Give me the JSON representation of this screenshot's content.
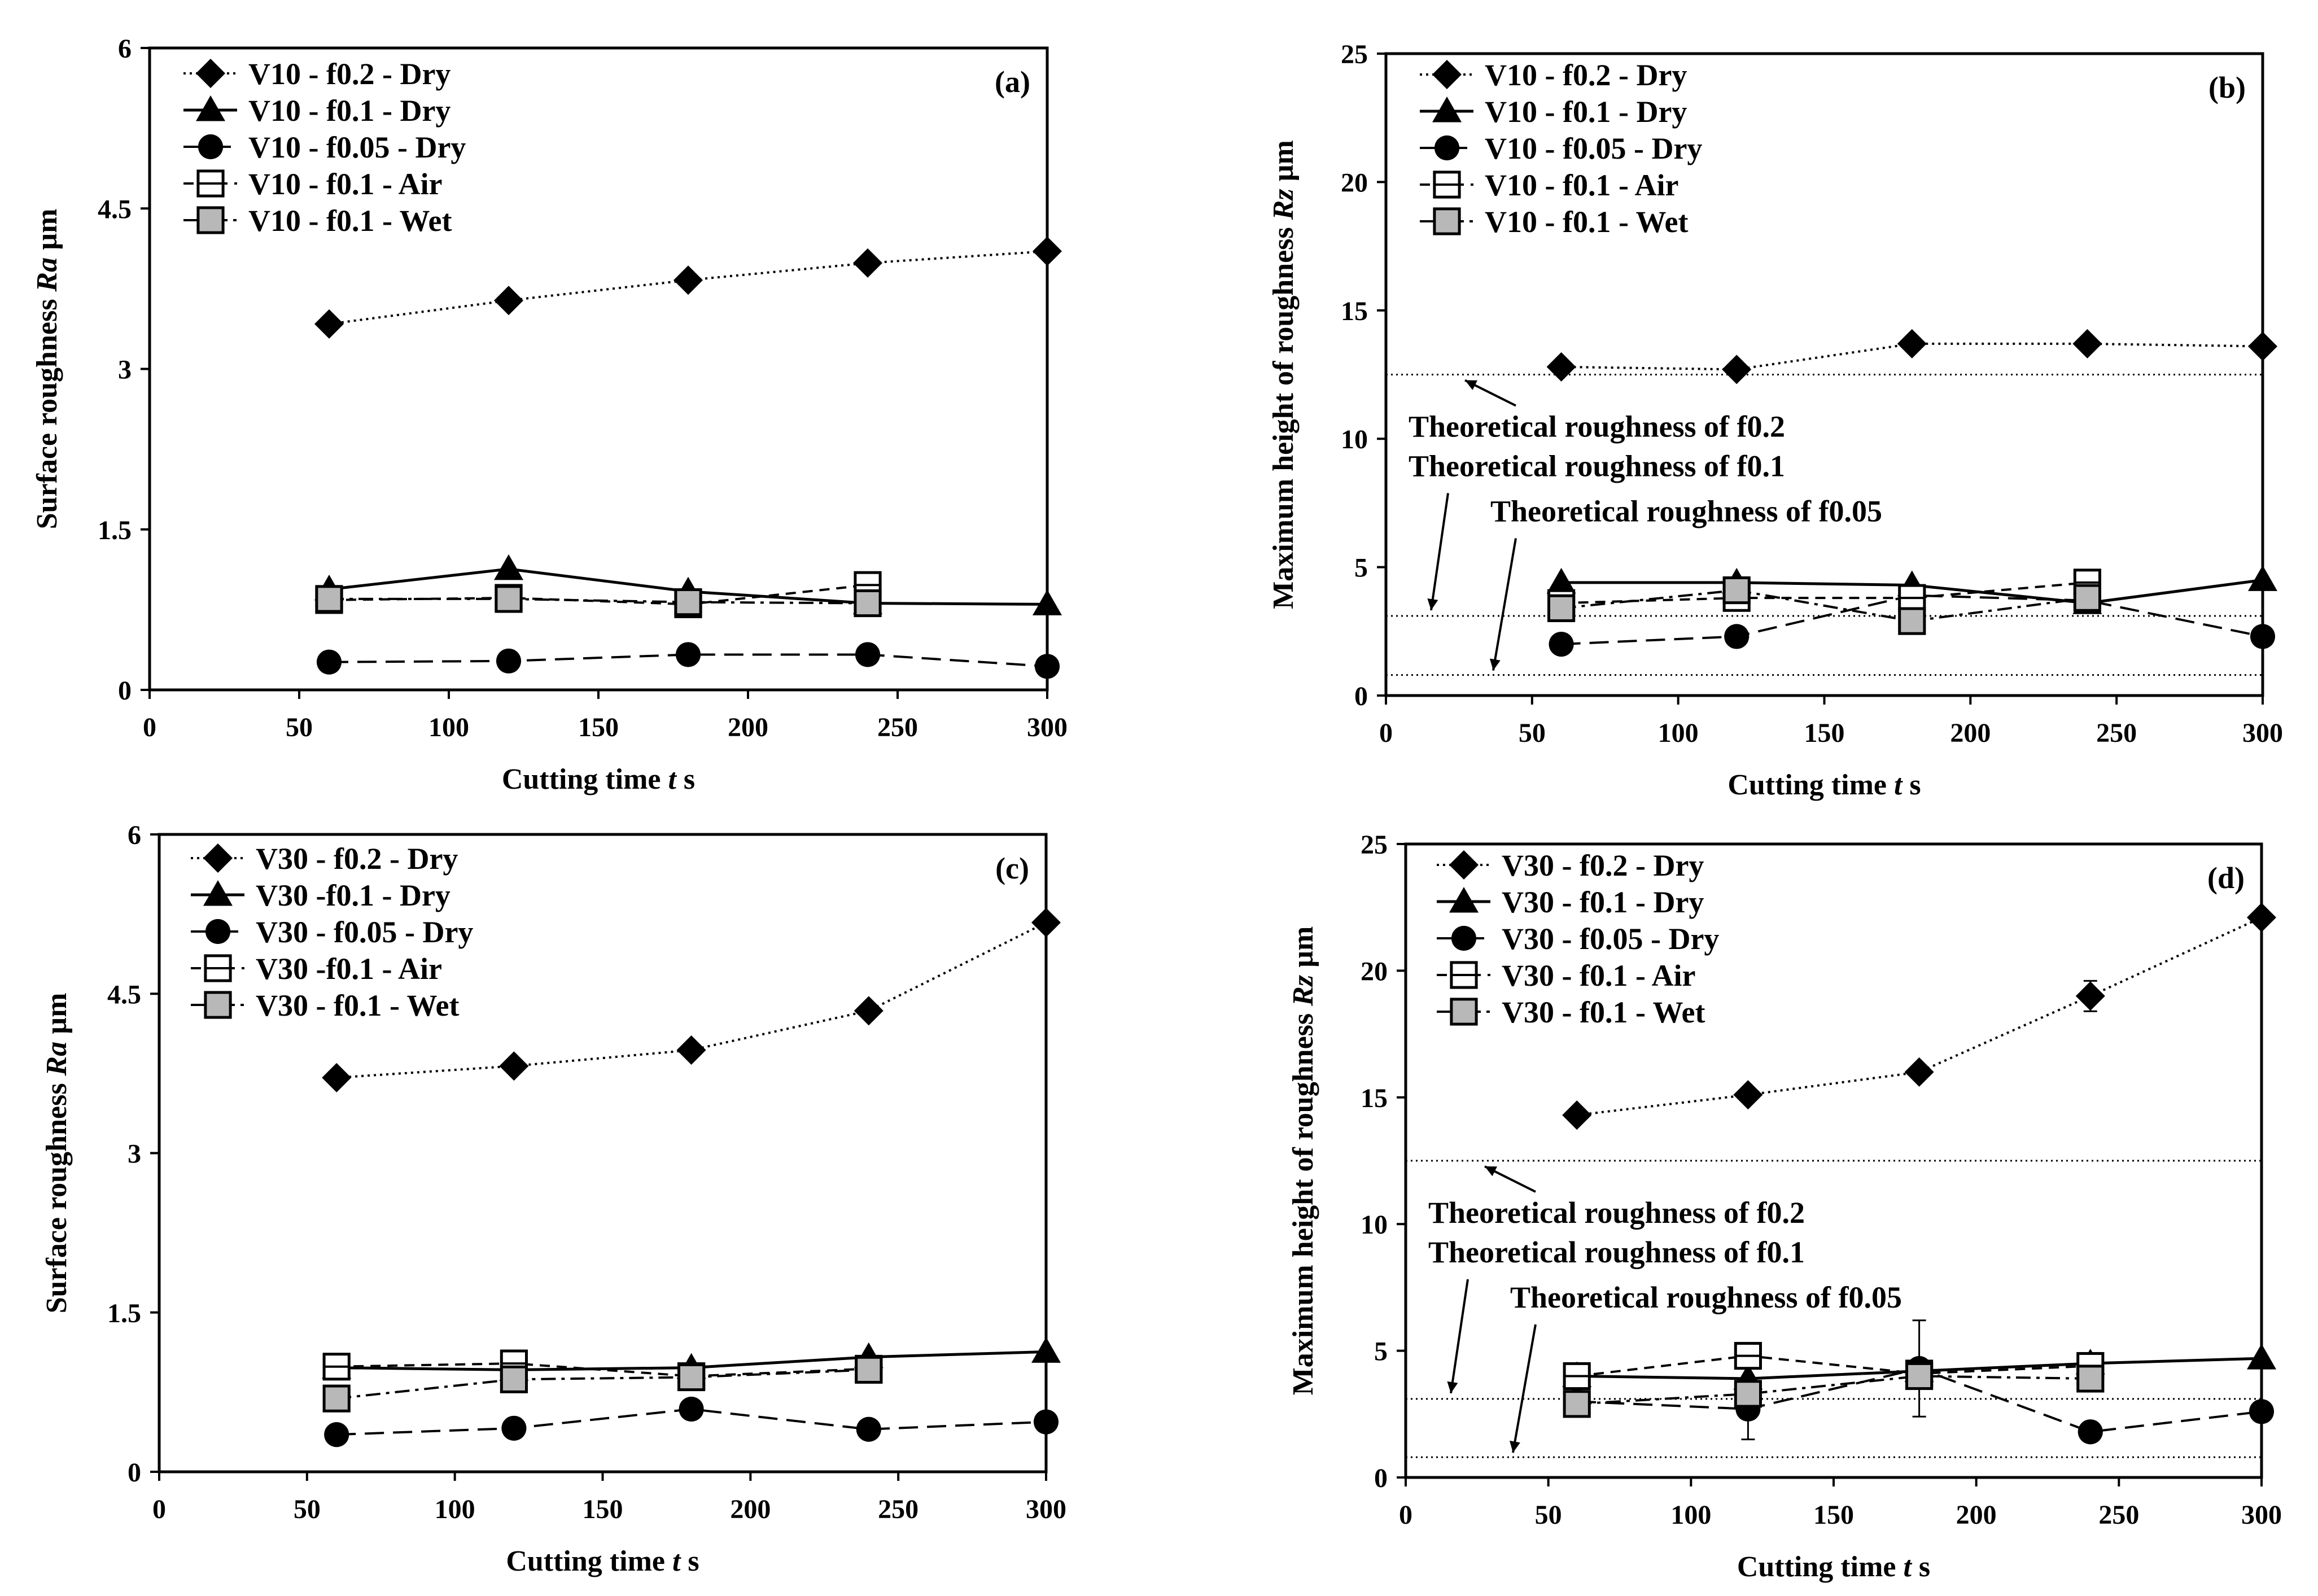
{
  "chart_data": [
    {
      "type": "line",
      "panel_label": "(a)",
      "xlabel": "Cutting time",
      "xlabel_var": "t",
      "xlabel_unit": "s",
      "ylabel": "Surface roughness",
      "ylabel_var": "Ra",
      "ylabel_unit": "µm",
      "xlim": [
        0,
        300
      ],
      "ylim": [
        0,
        6
      ],
      "xticks": [
        0,
        50,
        100,
        150,
        200,
        250,
        300
      ],
      "yticks": [
        0,
        1.5,
        3,
        4.5,
        6
      ],
      "x": [
        60,
        120,
        180,
        240,
        300
      ],
      "series": [
        {
          "name": "V10 - f0.2 - Dry",
          "marker": "diamond",
          "line": "dotted",
          "values": [
            3.42,
            3.64,
            3.83,
            3.99,
            4.1
          ]
        },
        {
          "name": "V10 - f0.1 - Dry",
          "marker": "triangle",
          "line": "solid",
          "values": [
            0.94,
            1.13,
            0.92,
            0.81,
            0.8
          ]
        },
        {
          "name": "V10 - f0.05 - Dry",
          "marker": "circle",
          "line": "longdash",
          "values": [
            0.26,
            0.27,
            0.33,
            0.33,
            0.22
          ]
        },
        {
          "name": "V10 - f0.1 - Air",
          "marker": "square-open",
          "line": "dash",
          "values": [
            0.84,
            0.86,
            0.8,
            0.98,
            null
          ]
        },
        {
          "name": "V10 - f0.1 - Wet",
          "marker": "square-grey",
          "line": "dashdot",
          "values": [
            0.85,
            0.85,
            0.82,
            0.81,
            null
          ]
        }
      ],
      "reference_lines": []
    },
    {
      "type": "line",
      "panel_label": "(b)",
      "xlabel": "Cutting time",
      "xlabel_var": "t",
      "xlabel_unit": "s",
      "ylabel": "Maximum height of roughness",
      "ylabel_var": "Rz",
      "ylabel_unit": "µm",
      "xlim": [
        0,
        300
      ],
      "ylim": [
        0,
        25
      ],
      "xticks": [
        0,
        50,
        100,
        150,
        200,
        250,
        300
      ],
      "yticks": [
        0,
        5,
        10,
        15,
        20,
        25
      ],
      "x": [
        60,
        120,
        180,
        240,
        300
      ],
      "series": [
        {
          "name": "V10 - f0.2 - Dry",
          "marker": "diamond",
          "line": "dotted",
          "values": [
            12.8,
            12.7,
            13.7,
            13.7,
            13.6
          ]
        },
        {
          "name": "V10 - f0.1 - Dry",
          "marker": "triangle",
          "line": "solid",
          "values": [
            4.4,
            4.4,
            4.3,
            3.6,
            4.5
          ]
        },
        {
          "name": "V10 - f0.05 - Dry",
          "marker": "circle",
          "line": "longdash",
          "values": [
            2.0,
            2.3,
            3.9,
            3.7,
            2.3
          ]
        },
        {
          "name": "V10 - f0.1 - Air",
          "marker": "square-open",
          "line": "dash",
          "values": [
            3.6,
            3.8,
            3.8,
            4.4,
            null
          ]
        },
        {
          "name": "V10 - f0.1 - Wet",
          "marker": "square-grey",
          "line": "dashdot",
          "values": [
            3.4,
            4.1,
            2.9,
            3.8,
            null
          ]
        }
      ],
      "reference_lines": [
        {
          "label": "Theoretical roughness of f0.2",
          "value": 12.5
        },
        {
          "label": "Theoretical roughness of f0.1",
          "value": 3.1
        },
        {
          "label": "Theoretical roughness of f0.05",
          "value": 0.8
        }
      ]
    },
    {
      "type": "line",
      "panel_label": "(c)",
      "xlabel": "Cutting time",
      "xlabel_var": "t",
      "xlabel_unit": "s",
      "ylabel": "Surface roughness",
      "ylabel_var": "Ra",
      "ylabel_unit": "µm",
      "xlim": [
        0,
        300
      ],
      "ylim": [
        0,
        6
      ],
      "xticks": [
        0,
        50,
        100,
        150,
        200,
        250,
        300
      ],
      "yticks": [
        0,
        1.5,
        3,
        4.5,
        6
      ],
      "x": [
        60,
        120,
        180,
        240,
        300
      ],
      "series": [
        {
          "name": "V30 - f0.2 - Dry",
          "marker": "diamond",
          "line": "dotted",
          "values": [
            3.71,
            3.82,
            3.97,
            4.34,
            5.17
          ]
        },
        {
          "name": "V30  -f0.1 - Dry",
          "marker": "triangle",
          "line": "solid",
          "values": [
            0.98,
            0.96,
            0.98,
            1.08,
            1.13
          ]
        },
        {
          "name": "V30 - f0.05 - Dry",
          "marker": "circle",
          "line": "longdash",
          "values": [
            0.35,
            0.41,
            0.59,
            0.4,
            0.47
          ]
        },
        {
          "name": "V30 -f0.1 - Air",
          "marker": "square-open",
          "line": "dash",
          "values": [
            0.99,
            1.02,
            0.9,
            0.97,
            null
          ]
        },
        {
          "name": "V30 - f0.1 - Wet",
          "marker": "square-grey",
          "line": "dashdot",
          "values": [
            0.69,
            0.87,
            0.89,
            0.96,
            null
          ]
        }
      ],
      "reference_lines": []
    },
    {
      "type": "line",
      "panel_label": "(d)",
      "xlabel": "Cutting time",
      "xlabel_var": "t",
      "xlabel_unit": "s",
      "ylabel": "Maximum height of roughness",
      "ylabel_var": "Rz",
      "ylabel_unit": "µm",
      "xlim": [
        0,
        300
      ],
      "ylim": [
        0,
        25
      ],
      "xticks": [
        0,
        50,
        100,
        150,
        200,
        250,
        300
      ],
      "yticks": [
        0,
        5,
        10,
        15,
        20,
        25
      ],
      "x": [
        60,
        120,
        180,
        240,
        300
      ],
      "series": [
        {
          "name": "V30 - f0.2 - Dry",
          "marker": "diamond",
          "line": "dotted",
          "values": [
            14.3,
            15.1,
            16.0,
            19.0,
            22.1
          ],
          "errors": [
            0,
            0,
            0,
            0.6,
            0
          ]
        },
        {
          "name": "V30 - f0.1 - Dry",
          "marker": "triangle",
          "line": "solid",
          "values": [
            4.0,
            3.9,
            4.2,
            4.5,
            4.7
          ]
        },
        {
          "name": "V30 - f0.05 - Dry",
          "marker": "circle",
          "line": "longdash",
          "values": [
            3.0,
            2.7,
            4.3,
            1.8,
            2.6
          ],
          "errors": [
            0,
            1.2,
            1.9,
            0,
            0
          ]
        },
        {
          "name": "V30 - f0.1 - Air",
          "marker": "square-open",
          "line": "dash",
          "values": [
            4.0,
            4.8,
            4.1,
            4.4,
            null
          ]
        },
        {
          "name": "V30 - f0.1 - Wet",
          "marker": "square-grey",
          "line": "dashdot",
          "values": [
            2.9,
            3.3,
            4.0,
            3.9,
            null
          ]
        }
      ],
      "reference_lines": [
        {
          "label": "Theoretical roughness of f0.2",
          "value": 12.5
        },
        {
          "label": "Theoretical roughness of f0.1",
          "value": 3.1
        },
        {
          "label": "Theoretical roughness of f0.05",
          "value": 0.8
        }
      ]
    }
  ]
}
